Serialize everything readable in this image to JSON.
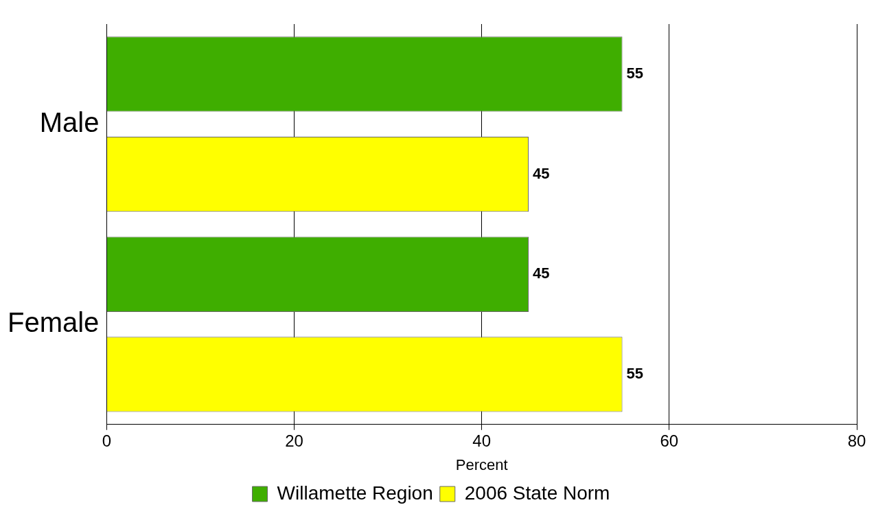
{
  "chart_data": {
    "type": "bar",
    "orientation": "horizontal",
    "categories": [
      "Male",
      "Female"
    ],
    "series": [
      {
        "name": "Willamette Region",
        "color": "#3fae00",
        "values": [
          55,
          45
        ]
      },
      {
        "name": "2006 State Norm",
        "color": "#ffff00",
        "values": [
          45,
          55
        ]
      }
    ],
    "xlim": [
      0,
      80
    ],
    "xticks": [
      0,
      20,
      40,
      60,
      80
    ],
    "xlabel": "Percent",
    "grid": "x",
    "data_labels": true,
    "legend": "bottom"
  }
}
